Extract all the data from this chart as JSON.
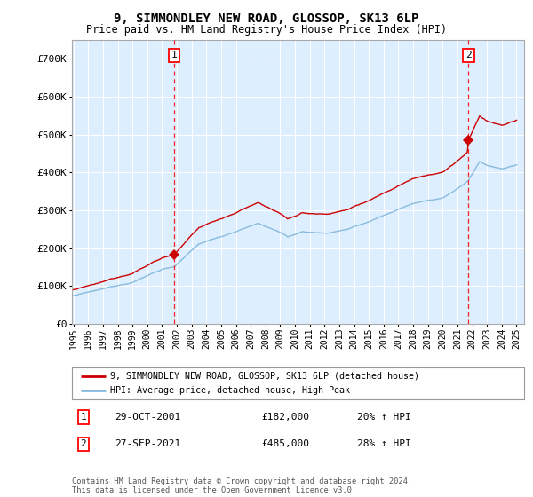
{
  "title": "9, SIMMONDLEY NEW ROAD, GLOSSOP, SK13 6LP",
  "subtitle": "Price paid vs. HM Land Registry's House Price Index (HPI)",
  "ylim": [
    0,
    750000
  ],
  "yticks": [
    0,
    100000,
    200000,
    300000,
    400000,
    500000,
    600000,
    700000
  ],
  "ytick_labels": [
    "£0",
    "£100K",
    "£200K",
    "£300K",
    "£400K",
    "£500K",
    "£600K",
    "£700K"
  ],
  "xlim_start": 1994.9,
  "xlim_end": 2025.5,
  "xticks": [
    1995,
    1996,
    1997,
    1998,
    1999,
    2000,
    2001,
    2002,
    2003,
    2004,
    2005,
    2006,
    2007,
    2008,
    2009,
    2010,
    2011,
    2012,
    2013,
    2014,
    2015,
    2016,
    2017,
    2018,
    2019,
    2020,
    2021,
    2022,
    2023,
    2024,
    2025
  ],
  "background_color": "#ddeeff",
  "grid_color": "#ffffff",
  "sale1_x": 2001.83,
  "sale1_y": 182000,
  "sale2_x": 2021.75,
  "sale2_y": 485000,
  "legend_line1": "9, SIMMONDLEY NEW ROAD, GLOSSOP, SK13 6LP (detached house)",
  "legend_line2": "HPI: Average price, detached house, High Peak",
  "annotation1_label": "1",
  "annotation1_date": "29-OCT-2001",
  "annotation1_price": "£182,000",
  "annotation1_hpi": "20% ↑ HPI",
  "annotation2_label": "2",
  "annotation2_date": "27-SEP-2021",
  "annotation2_price": "£485,000",
  "annotation2_hpi": "28% ↑ HPI",
  "footer": "Contains HM Land Registry data © Crown copyright and database right 2024.\nThis data is licensed under the Open Government Licence v3.0.",
  "red_line_color": "#cc0000",
  "blue_line_color": "#88bbdd"
}
